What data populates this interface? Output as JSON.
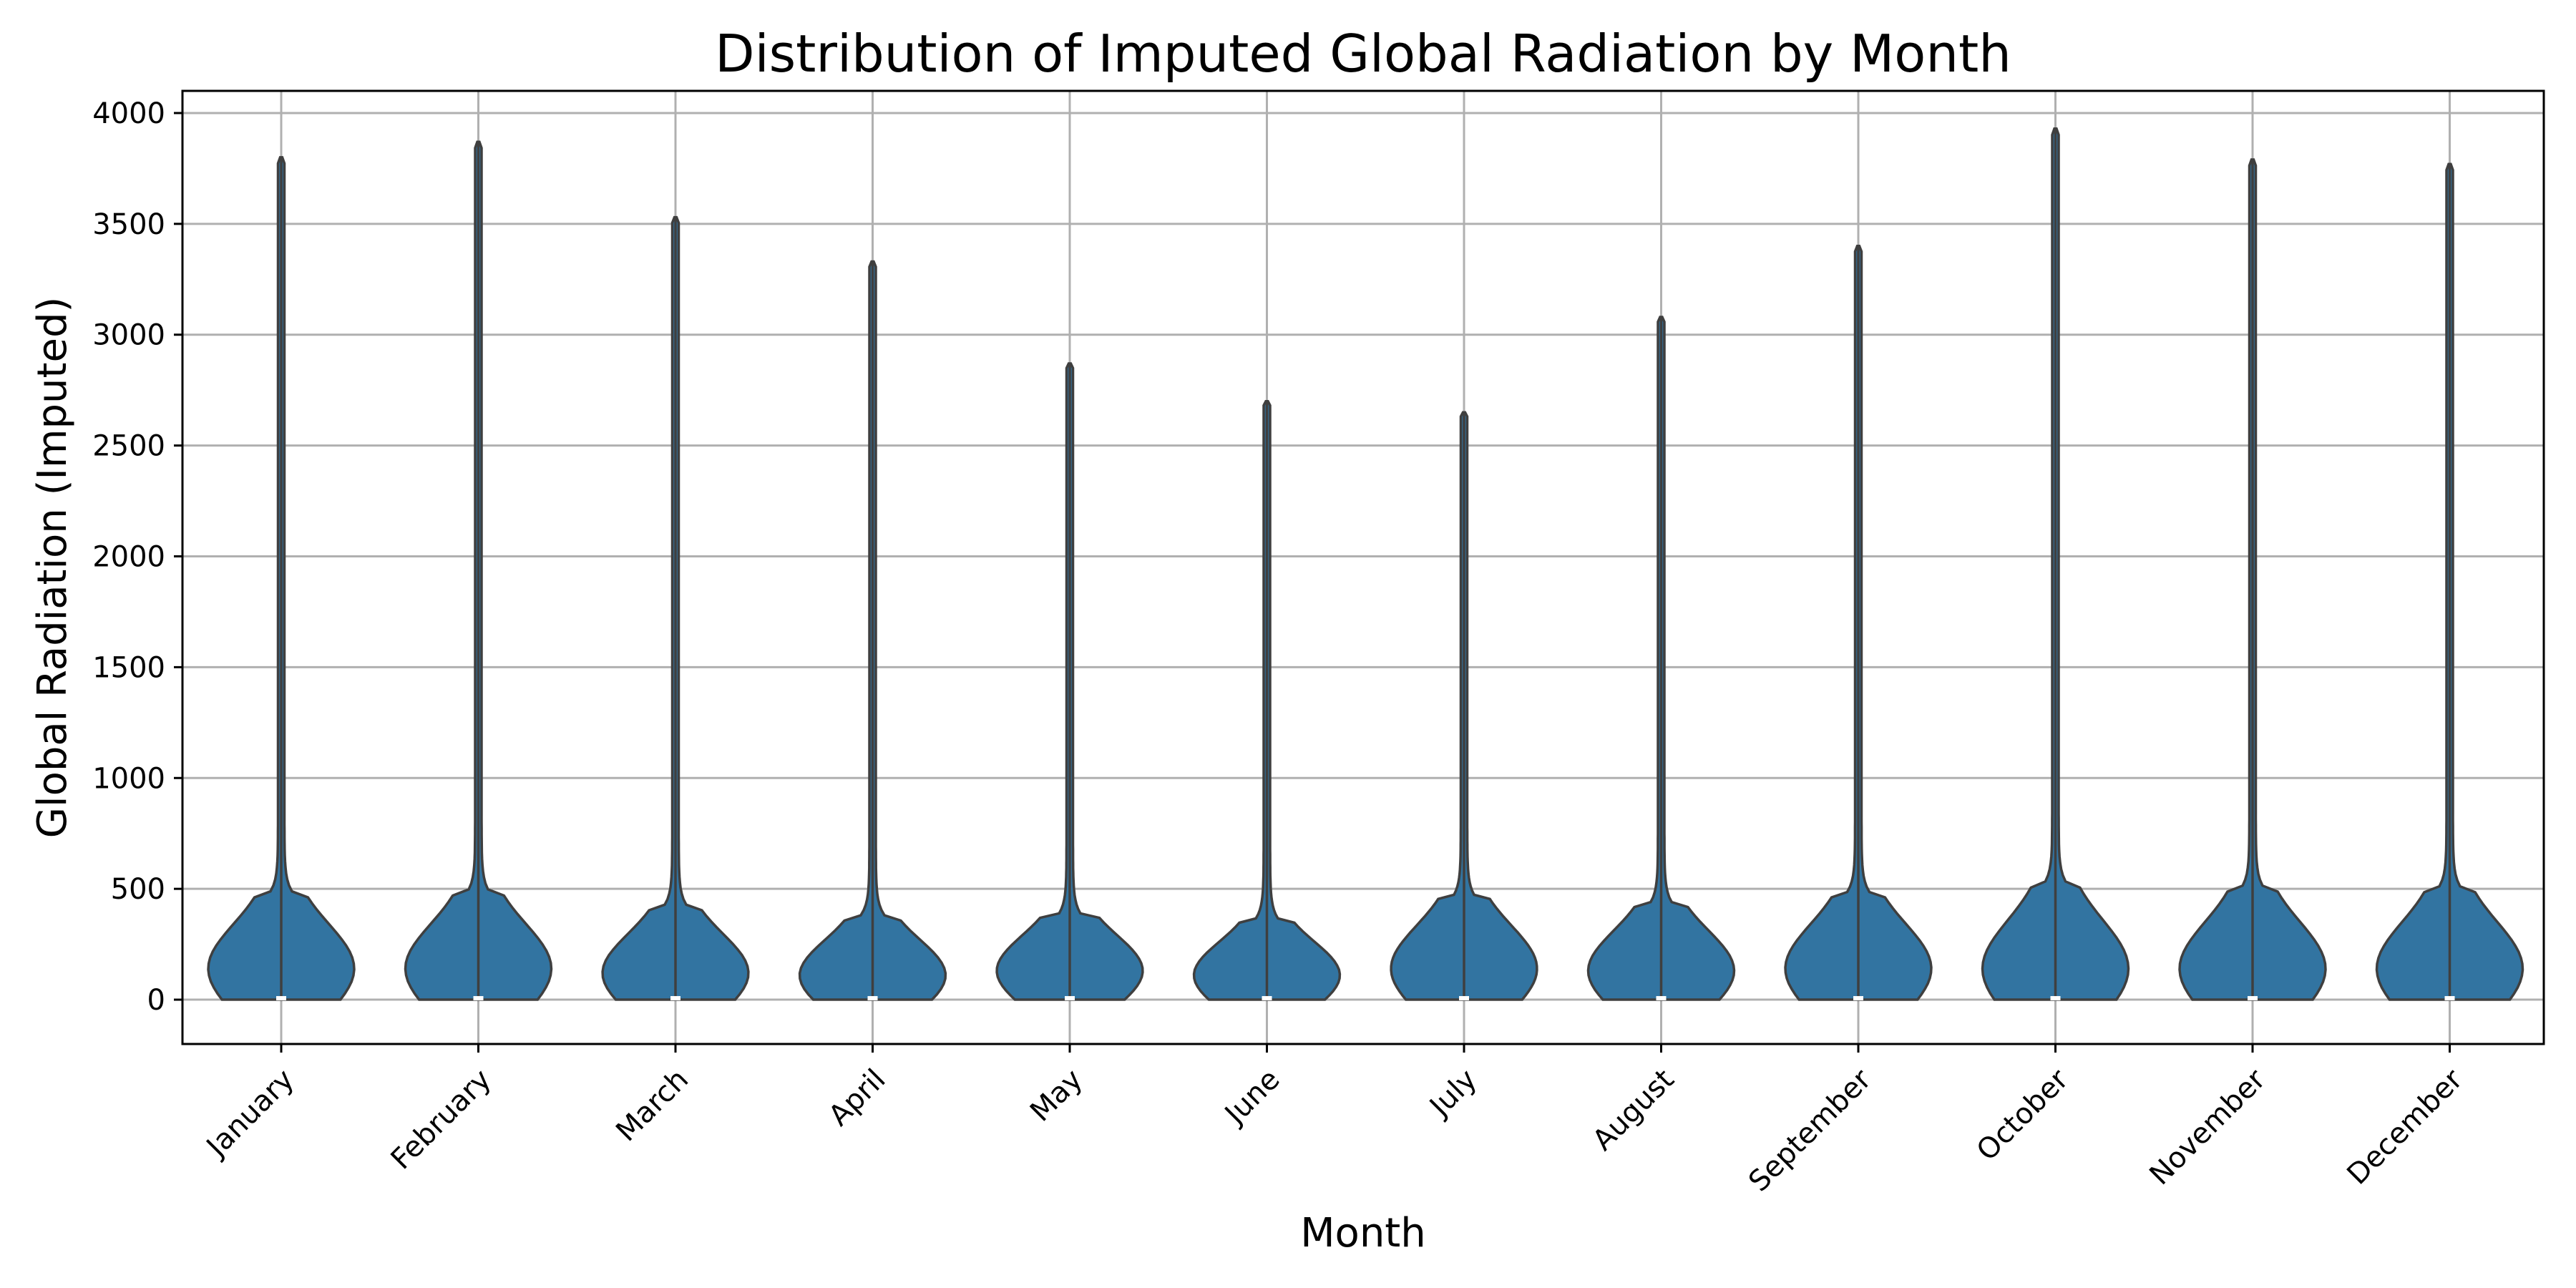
{
  "chart_data": {
    "type": "violin",
    "title": "Distribution of Imputed Global Radiation by Month",
    "xlabel": "Month",
    "ylabel": "Global Radiation (Imputed)",
    "ylim": [
      -200,
      4100
    ],
    "yticks": [
      0,
      500,
      1000,
      1500,
      2000,
      2500,
      3000,
      3500,
      4000
    ],
    "grid": true,
    "legend": "none",
    "categories": [
      "January",
      "February",
      "March",
      "April",
      "May",
      "June",
      "July",
      "August",
      "September",
      "October",
      "November",
      "December"
    ],
    "series": [
      {
        "color": "#3274a1",
        "min": [
          0,
          0,
          0,
          0,
          0,
          0,
          0,
          0,
          0,
          0,
          0,
          0
        ],
        "max": [
          3800,
          3870,
          3530,
          3330,
          2870,
          2700,
          2650,
          3080,
          3400,
          3930,
          3790,
          3770
        ],
        "median": [
          0,
          0,
          0,
          0,
          0,
          0,
          0,
          0,
          0,
          0,
          0,
          0
        ],
        "body_top": [
          480,
          480,
          420,
          380,
          380,
          360,
          460,
          430,
          480,
          520,
          500,
          500
        ],
        "peak_value": [
          140,
          140,
          120,
          110,
          130,
          110,
          140,
          130,
          140,
          140,
          140,
          140
        ]
      }
    ]
  }
}
